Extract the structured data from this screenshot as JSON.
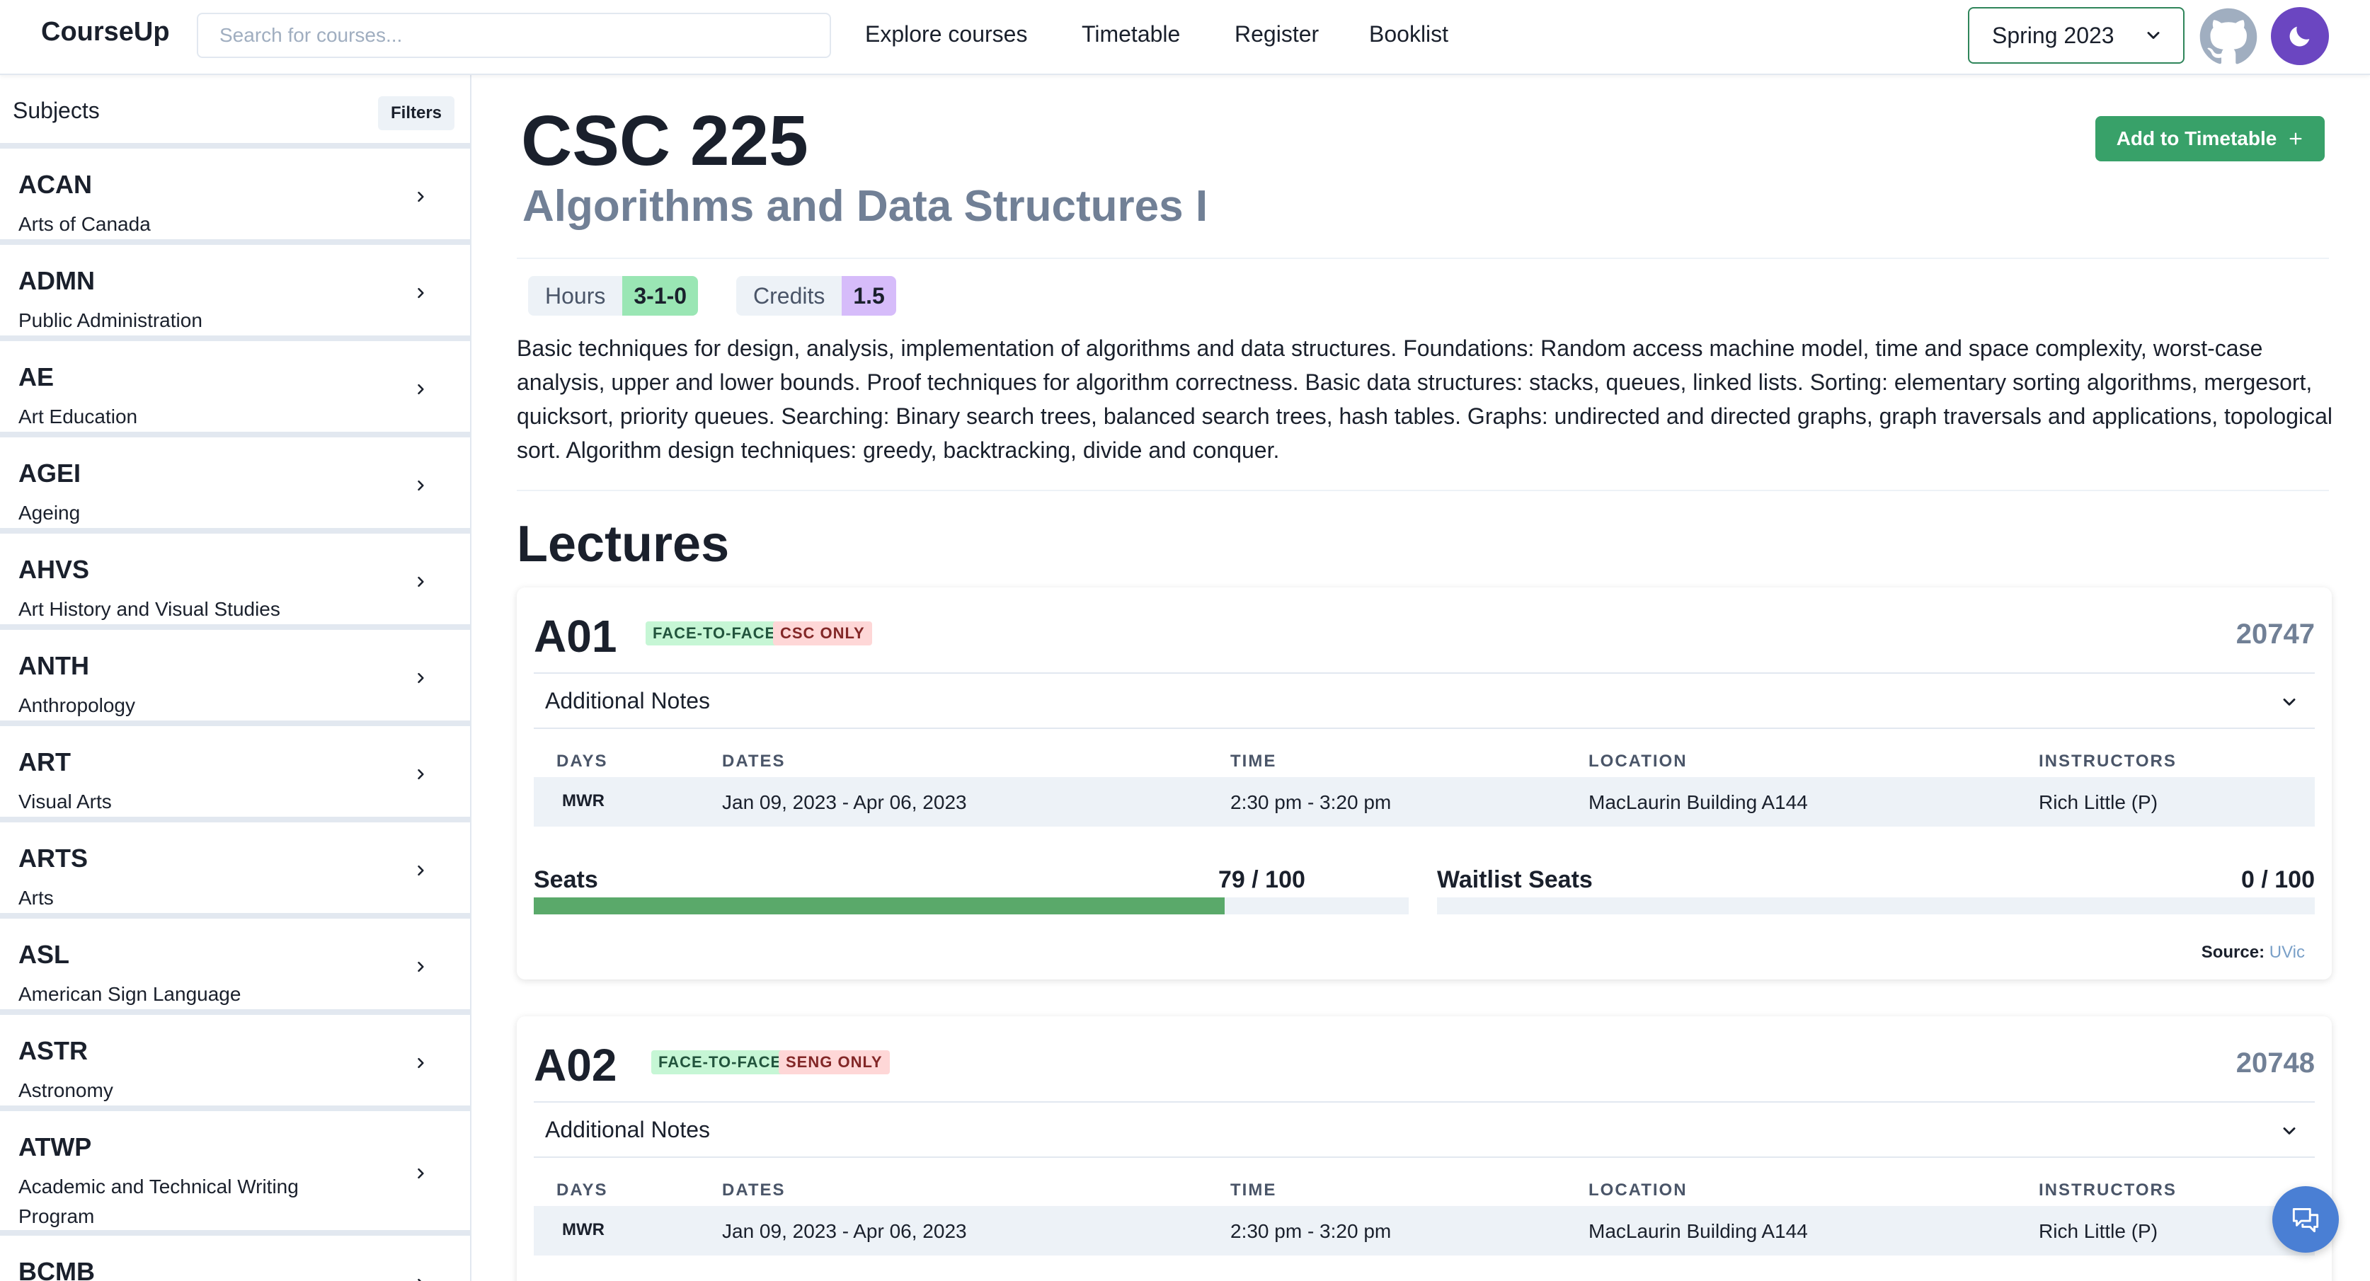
{
  "header": {
    "logo": "CourseUp",
    "search_placeholder": "Search for courses...",
    "nav": [
      "Explore courses",
      "Timetable",
      "Register",
      "Booklist"
    ],
    "term": "Spring 2023"
  },
  "sidebar": {
    "title": "Subjects",
    "filters_label": "Filters",
    "subjects": [
      {
        "code": "ACAN",
        "name": "Arts of Canada"
      },
      {
        "code": "ADMN",
        "name": "Public Administration"
      },
      {
        "code": "AE",
        "name": "Art Education"
      },
      {
        "code": "AGEI",
        "name": "Ageing"
      },
      {
        "code": "AHVS",
        "name": "Art History and Visual Studies"
      },
      {
        "code": "ANTH",
        "name": "Anthropology"
      },
      {
        "code": "ART",
        "name": "Visual Arts"
      },
      {
        "code": "ARTS",
        "name": "Arts"
      },
      {
        "code": "ASL",
        "name": "American Sign Language"
      },
      {
        "code": "ASTR",
        "name": "Astronomy"
      },
      {
        "code": "ATWP",
        "name": "Academic and Technical Writing Program"
      },
      {
        "code": "BCMB",
        "name": ""
      }
    ]
  },
  "course": {
    "code": "CSC 225",
    "title": "Algorithms and Data Structures I",
    "add_button": "Add to Timetable",
    "hours_label": "Hours",
    "hours_value": "3-1-0",
    "credits_label": "Credits",
    "credits_value": "1.5",
    "description": "Basic techniques for design, analysis, implementation of algorithms and data structures. Foundations: Random access machine model, time and space complexity, worst-case analysis, upper and lower bounds. Proof techniques for algorithm correctness. Basic data structures: stacks, queues, linked lists. Sorting: elementary sorting algorithms, mergesort, quicksort, priority queues. Searching: Binary search trees, balanced search trees, hash tables. Graphs: undirected and directed graphs, graph traversals and applications, topological sort. Algorithm design techniques: greedy, backtracking, divide and conquer."
  },
  "lectures_heading": "Lectures",
  "columns": [
    "DAYS",
    "DATES",
    "TIME",
    "LOCATION",
    "INSTRUCTORS"
  ],
  "sections": [
    {
      "name": "A01",
      "tags": [
        "FACE-TO-FACE",
        "CSC ONLY"
      ],
      "crn": "20747",
      "notes_label": "Additional Notes",
      "days": "MWR",
      "dates": "Jan 09, 2023 - Apr 06, 2023",
      "time": "2:30 pm - 3:20 pm",
      "location": "MacLaurin Building A144",
      "instructors": "Rich Little (P)",
      "seats_label": "Seats",
      "seats_text": "79 / 100",
      "seats_fraction": 0.79,
      "waitlist_label": "Waitlist Seats",
      "waitlist_text": "0 / 100",
      "waitlist_fraction": 0,
      "source_label": "Source:",
      "source_link": "UVic"
    },
    {
      "name": "A02",
      "tags": [
        "FACE-TO-FACE",
        "SENG ONLY"
      ],
      "crn": "20748",
      "notes_label": "Additional Notes",
      "days": "MWR",
      "dates": "Jan 09, 2023 - Apr 06, 2023",
      "time": "2:30 pm - 3:20 pm",
      "location": "MacLaurin Building A144",
      "instructors": "Rich Little (P)"
    }
  ],
  "colors": {
    "accent_green": "#38a169",
    "theme_purple": "#6b46c1",
    "chat_blue": "#4a7fd4"
  }
}
